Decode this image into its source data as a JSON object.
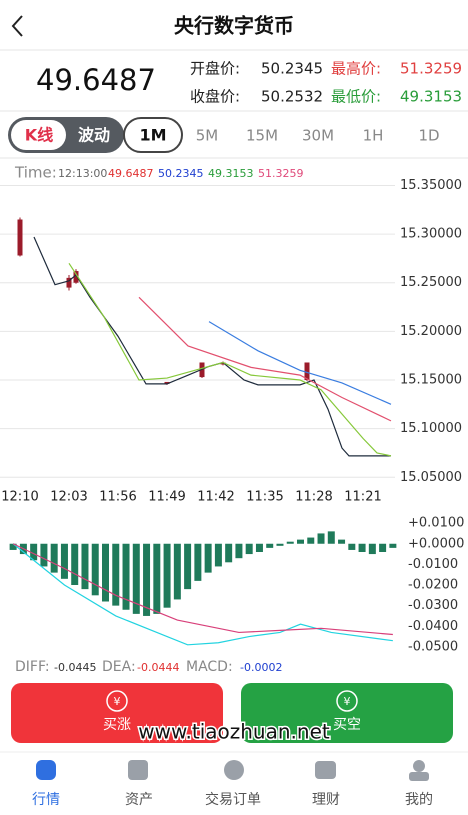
{
  "header": {
    "title": "央行数字货币"
  },
  "quote": {
    "price": "49.6487",
    "open_label": "开盘价:",
    "open": "50.2345",
    "high_label": "最高价:",
    "high": "51.3259",
    "close_label": "收盘价:",
    "close": "50.2532",
    "low_label": "最低价:",
    "low": "49.3153"
  },
  "tabs": {
    "modes": [
      "K线",
      "波动"
    ],
    "periods": [
      "1M",
      "5M",
      "15M",
      "30M",
      "1H",
      "1D"
    ]
  },
  "info": {
    "time_label": "Time:",
    "time": "12:13:00",
    "values": [
      "49.6487",
      "50.2345",
      "49.3153",
      "51.3259"
    ]
  },
  "chart_data": [
    {
      "type": "candlestick",
      "xlim": [
        0,
        53
      ],
      "xticks": [
        {
          "value": 0,
          "label": "12:10"
        },
        {
          "value": 7,
          "label": "12:03"
        },
        {
          "value": 14,
          "label": "11:56"
        },
        {
          "value": 21,
          "label": "11:49"
        },
        {
          "value": 28,
          "label": "11:42"
        },
        {
          "value": 35,
          "label": "11:35"
        },
        {
          "value": 42,
          "label": "11:28"
        },
        {
          "value": 49,
          "label": "11:21"
        }
      ],
      "ylim": [
        15.04,
        15.37
      ],
      "yticks": [
        {
          "value": 15.35,
          "label": "15.35000"
        },
        {
          "value": 15.3,
          "label": "15.30000"
        },
        {
          "value": 15.25,
          "label": "15.25000"
        },
        {
          "value": 15.2,
          "label": "15.20000"
        },
        {
          "value": 15.15,
          "label": "15.15000"
        },
        {
          "value": 15.1,
          "label": "15.10000"
        },
        {
          "value": 15.05,
          "label": "15.05000"
        }
      ],
      "grid": true,
      "candles": {
        "color": "#9b1b2a",
        "x": [
          0,
          7,
          8,
          21,
          26,
          29,
          41
        ],
        "open": [
          15.278,
          15.245,
          15.25,
          15.146,
          15.153,
          15.166,
          15.15
        ],
        "high": [
          15.317,
          15.258,
          15.264,
          15.148,
          15.168,
          15.169,
          15.168
        ],
        "low": [
          15.277,
          15.242,
          15.249,
          15.145,
          15.152,
          15.165,
          15.149
        ],
        "close": [
          15.315,
          15.255,
          15.262,
          15.148,
          15.168,
          15.168,
          15.168
        ]
      },
      "series": [
        {
          "color": "#1e2b3c",
          "x": [
            2,
            5,
            7,
            8,
            10,
            14,
            18,
            21,
            24,
            27,
            29,
            32,
            34,
            40,
            42,
            44,
            46,
            47,
            53
          ],
          "values": [
            15.297,
            15.248,
            15.252,
            15.258,
            15.235,
            15.195,
            15.146,
            15.146,
            15.155,
            15.164,
            15.168,
            15.15,
            15.145,
            15.145,
            15.15,
            15.12,
            15.08,
            15.072,
            15.072
          ]
        },
        {
          "color": "#86c83a",
          "x": [
            7,
            12,
            17,
            21,
            26,
            29,
            33,
            40,
            43,
            49,
            51,
            53
          ],
          "values": [
            15.27,
            15.215,
            15.15,
            15.152,
            15.162,
            15.168,
            15.155,
            15.15,
            15.14,
            15.09,
            15.075,
            15.072
          ]
        },
        {
          "color": "#e2506e",
          "x": [
            17,
            24,
            33,
            40,
            46,
            53
          ],
          "values": [
            15.235,
            15.185,
            15.163,
            15.155,
            15.132,
            15.108
          ]
        },
        {
          "color": "#3a7de0",
          "x": [
            27,
            34,
            40,
            46,
            53
          ],
          "values": [
            15.21,
            15.18,
            15.16,
            15.147,
            15.125
          ]
        }
      ]
    },
    {
      "type": "bar",
      "xlim": [
        -0.5,
        37.5
      ],
      "ylim": [
        -0.052,
        0.012
      ],
      "yticks": [
        {
          "value": 0.01,
          "label": "+0.0100"
        },
        {
          "value": 0,
          "label": "+0.0000"
        },
        {
          "value": -0.01,
          "label": "-0.0100"
        },
        {
          "value": -0.02,
          "label": "-0.0200"
        },
        {
          "value": -0.03,
          "label": "-0.0300"
        },
        {
          "value": -0.04,
          "label": "-0.0400"
        },
        {
          "value": -0.05,
          "label": "-0.0500"
        }
      ],
      "grid": false,
      "color": "#1f7a5a",
      "values": [
        -0.003,
        -0.005,
        -0.008,
        -0.011,
        -0.014,
        -0.017,
        -0.02,
        -0.022,
        -0.025,
        -0.028,
        -0.03,
        -0.032,
        -0.034,
        -0.035,
        -0.034,
        -0.031,
        -0.027,
        -0.022,
        -0.018,
        -0.014,
        -0.011,
        -0.009,
        -0.007,
        -0.005,
        -0.004,
        -0.002,
        -0.001,
        0.001,
        0.002,
        0.003,
        0.005,
        0.006,
        0.002,
        -0.003,
        -0.004,
        -0.005,
        -0.004,
        -0.002
      ],
      "series": [
        {
          "color": "#22d3e0",
          "x": [
            0,
            5,
            10,
            15,
            17,
            20,
            23,
            26,
            28,
            31,
            37
          ],
          "values": [
            0,
            -0.02,
            -0.035,
            -0.045,
            -0.049,
            -0.048,
            -0.045,
            -0.043,
            -0.039,
            -0.043,
            -0.047
          ]
        },
        {
          "color": "#d8407a",
          "x": [
            0,
            5,
            10,
            16,
            22,
            26,
            30,
            37
          ],
          "values": [
            0,
            -0.012,
            -0.025,
            -0.037,
            -0.043,
            -0.042,
            -0.041,
            -0.044
          ]
        }
      ]
    }
  ],
  "indicators": [
    {
      "label": "DIFF:",
      "value": "-0.0445"
    },
    {
      "label": "DEA:",
      "value": "-0.0444"
    },
    {
      "label": "MACD:",
      "value": "-0.0002"
    }
  ],
  "actions": [
    "买涨",
    "买空"
  ],
  "watermark": "www.tiaozhuan.net",
  "nav": [
    "行情",
    "资产",
    "交易订单",
    "理财",
    "我的"
  ]
}
